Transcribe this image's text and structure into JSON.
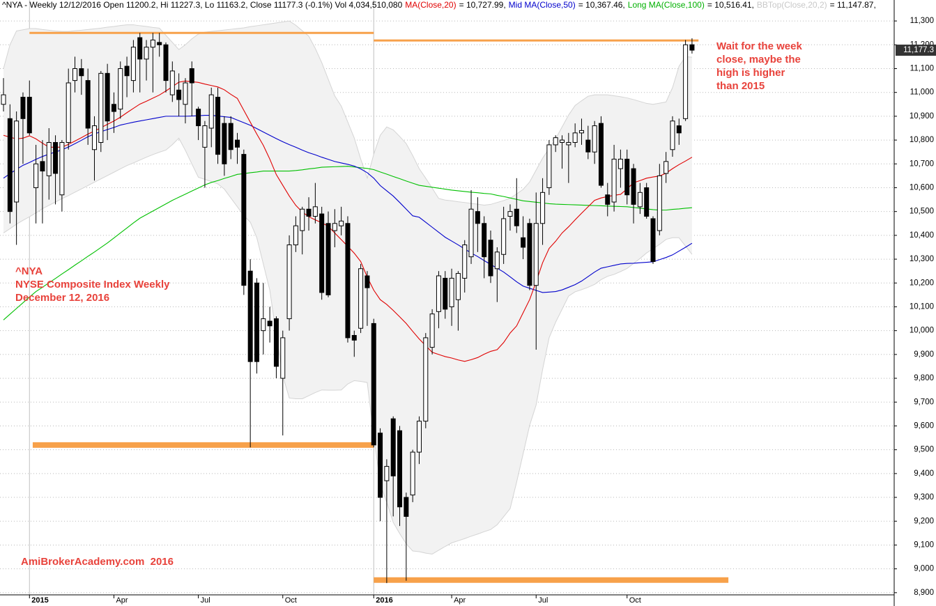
{
  "chart_data": {
    "type": "candlestick",
    "header": [
      {
        "text": "^NYA - Weekly 12/12/2016 Open 11200.2, Hi 11227.3, Lo 11163.2, Close 11177.3 (-0.1%) Vol 4,034,510,080",
        "color": "#000000"
      },
      {
        "text": "MA(Close,20)",
        "color": "#e00000"
      },
      {
        "text": "= 10,727.99,",
        "color": "#000000"
      },
      {
        "text": "Mid MA(Close,50)",
        "color": "#0000cc"
      },
      {
        "text": "= 10,367.46,",
        "color": "#000000"
      },
      {
        "text": "Long MA(Close,100)",
        "color": "#00b000"
      },
      {
        "text": "= 10,516.41,",
        "color": "#000000"
      },
      {
        "text": "BBTop(Close,20,2)",
        "color": "#c8c8c8"
      },
      {
        "text": "= 11,147.87,",
        "color": "#000000"
      }
    ],
    "annotations": [
      {
        "lines": [
          "Wait for the week",
          "close, maybe the",
          "high is higher",
          "than 2015"
        ],
        "color": "#e8423b"
      },
      {
        "lines": [
          "^NYA",
          "NYSE Composite Index Weekly",
          "December 12, 2016"
        ],
        "color": "#e8423b"
      },
      {
        "lines": [
          "AmiBrokerAcademy.com  2016"
        ],
        "color": "#e8423b"
      }
    ],
    "categories": [
      null,
      null,
      null,
      null,
      "2015",
      null,
      null,
      null,
      null,
      null,
      null,
      null,
      null,
      null,
      null,
      null,
      null,
      "Apr",
      null,
      null,
      null,
      null,
      null,
      null,
      null,
      null,
      null,
      null,
      null,
      null,
      "Jul",
      null,
      null,
      null,
      null,
      null,
      null,
      null,
      null,
      null,
      null,
      null,
      null,
      "Oct",
      null,
      null,
      null,
      null,
      null,
      null,
      null,
      null,
      null,
      null,
      null,
      null,
      null,
      "2016",
      null,
      null,
      null,
      null,
      null,
      null,
      null,
      null,
      null,
      null,
      null,
      "Apr",
      null,
      null,
      null,
      null,
      null,
      null,
      null,
      null,
      null,
      null,
      null,
      null,
      "Jul",
      null,
      null,
      null,
      null,
      null,
      null,
      null,
      null,
      null,
      null,
      null,
      null,
      null,
      "Oct",
      null,
      null,
      null,
      null,
      null,
      null,
      null,
      null,
      null,
      null
    ],
    "open": [
      10950,
      10890,
      10540,
      10980,
      10980,
      10600,
      10710,
      10650,
      10790,
      10570,
      10790,
      11050,
      11100,
      11050,
      10760,
      10790,
      11080,
      10950,
      10930,
      11110,
      11050,
      11230,
      11140,
      11190,
      11210,
      11200,
      10990,
      11010,
      10950,
      11100,
      10930,
      10770,
      10850,
      10980,
      10870,
      10870,
      10800,
      10740,
      10250,
      10200,
      10000,
      10040,
      10050,
      9800,
      10050,
      10360,
      10420,
      10510,
      10480,
      10490,
      10450,
      10420,
      10440,
      10450,
      9980,
      10010,
      10230,
      10030,
      9570,
      9370,
      9630,
      9580,
      9300,
      9310,
      9490,
      9620,
      9930,
      10080,
      10220,
      10100,
      10130,
      10220,
      10310,
      10500,
      10450,
      10380,
      10260,
      10320,
      10480,
      10510,
      10390,
      10450,
      10190,
      10450,
      10600,
      10780,
      10790,
      10780,
      10790,
      10830,
      10800,
      10750,
      10870,
      10570,
      10540,
      10680,
      10720,
      10680,
      10520,
      10600,
      10470,
      10420,
      10660,
      10760,
      10860,
      10890,
      11200.2
    ],
    "high": [
      11060,
      10950,
      10920,
      11000,
      11050,
      10780,
      10800,
      10850,
      10820,
      10800,
      11100,
      11150,
      11140,
      11100,
      10900,
      11090,
      11120,
      11000,
      11130,
      11150,
      11220,
      11250,
      11220,
      11250,
      11250,
      11210,
      11130,
      11080,
      11060,
      11130,
      10940,
      10880,
      11020,
      11020,
      10900,
      10900,
      10830,
      10760,
      10300,
      10220,
      10200,
      10100,
      10060,
      10000,
      10400,
      10480,
      10520,
      10560,
      10620,
      10520,
      10500,
      10510,
      10520,
      10480,
      10000,
      10280,
      10250,
      10050,
      9590,
      9460,
      9640,
      9600,
      9320,
      9500,
      9640,
      9990,
      10090,
      10250,
      10250,
      10260,
      10250,
      10380,
      10590,
      10560,
      10480,
      10420,
      10350,
      10520,
      10530,
      10640,
      10480,
      10470,
      10580,
      10640,
      10800,
      10820,
      10820,
      10830,
      10870,
      10890,
      10860,
      10880,
      10900,
      10620,
      10780,
      10760,
      10760,
      10700,
      10620,
      10620,
      10480,
      10700,
      10750,
      10900,
      10890,
      11220,
      11227.3
    ],
    "low": [
      10920,
      10450,
      10360,
      10700,
      10820,
      10450,
      10450,
      10550,
      10530,
      10500,
      10760,
      11000,
      10990,
      10780,
      10630,
      10750,
      10800,
      10830,
      10890,
      10980,
      11000,
      11000,
      11050,
      11000,
      11150,
      11000,
      10960,
      10900,
      10870,
      10900,
      10800,
      10600,
      10770,
      10700,
      10650,
      10720,
      10700,
      10150,
      9510,
      9820,
      9900,
      9950,
      9800,
      9560,
      10000,
      10330,
      10320,
      10420,
      10450,
      10130,
      10140,
      10350,
      10400,
      9950,
      9890,
      9990,
      10020,
      9510,
      9200,
      8940,
      9220,
      9180,
      8950,
      9280,
      9440,
      9590,
      9900,
      10010,
      10050,
      10020,
      10000,
      10160,
      10280,
      10330,
      10220,
      10200,
      10120,
      10280,
      10420,
      10410,
      10300,
      10170,
      9920,
      10360,
      10570,
      10750,
      10680,
      10620,
      10770,
      10780,
      10720,
      10700,
      10600,
      10480,
      10500,
      10600,
      10530,
      10450,
      10490,
      10470,
      10280,
      10400,
      10620,
      10730,
      10780,
      10880,
      11163.2
    ],
    "close": [
      10990,
      10500,
      10880,
      10890,
      10830,
      10700,
      10670,
      10790,
      10660,
      10790,
      11040,
      11100,
      11070,
      10850,
      10860,
      11080,
      10880,
      10920,
      11100,
      11070,
      11190,
      11140,
      11190,
      11220,
      11200,
      11050,
      11090,
      10970,
      11040,
      11040,
      10860,
      10860,
      10990,
      10740,
      10700,
      10760,
      10770,
      10190,
      9870,
      9870,
      10050,
      10020,
      9850,
      9970,
      10360,
      10440,
      10510,
      10480,
      10520,
      10160,
      10150,
      10450,
      10460,
      9970,
      9960,
      10260,
      10180,
      9520,
      9300,
      9430,
      9390,
      9260,
      9220,
      9490,
      9620,
      9970,
      10070,
      10230,
      10090,
      10220,
      10240,
      10360,
      10510,
      10450,
      10310,
      10230,
      10330,
      10470,
      10500,
      10440,
      10350,
      10190,
      10450,
      10580,
      10780,
      10810,
      10800,
      10790,
      10830,
      10840,
      10750,
      10860,
      10610,
      10530,
      10720,
      10720,
      10570,
      10530,
      10580,
      10480,
      10290,
      10650,
      10710,
      10880,
      10830,
      11200,
      11177.3
    ],
    "bands": {
      "color": "#f2f2f2",
      "edge": "#d4d4d4",
      "upper": [
        11100,
        11200,
        11258,
        11263,
        11268,
        11268,
        11264,
        11261,
        11258,
        11256,
        11256,
        11259,
        11261,
        11264,
        11267,
        11270,
        11274,
        11277,
        11281,
        11284,
        11284,
        11280,
        11277,
        11273,
        11270,
        11240,
        11210,
        11180,
        11200,
        11225,
        11245,
        11253,
        11256,
        11259,
        11262,
        11265,
        11268,
        11271,
        11276,
        11280,
        11284,
        11288,
        11292,
        11296,
        11300,
        11282,
        11259,
        11236,
        11185,
        11125,
        11055,
        10985,
        10943,
        10876,
        10809,
        10720,
        10640,
        10740,
        10820,
        10855,
        10843,
        10815,
        10785,
        10735,
        10680,
        10640,
        10598,
        10555,
        10548,
        10545,
        10541,
        10538,
        10534,
        10531,
        10527,
        10530,
        10538,
        10546,
        10556,
        10574,
        10593,
        10624,
        10674,
        10724,
        10765,
        10805,
        10855,
        10905,
        10945,
        10965,
        10984,
        10990,
        10990,
        10990,
        10986,
        10982,
        10977,
        10970,
        10962,
        10954,
        10950,
        10955,
        10960,
        11020,
        11110,
        11150,
        11148
      ],
      "lower": [
        10410,
        10428,
        10447,
        10463,
        10478,
        10494,
        10512,
        10526,
        10540,
        10554,
        10567,
        10581,
        10595,
        10609,
        10623,
        10637,
        10651,
        10665,
        10679,
        10693,
        10704,
        10716,
        10728,
        10739,
        10749,
        10758,
        10781,
        10808,
        10757,
        10700,
        10644,
        10635,
        10626,
        10616,
        10594,
        10557,
        10520,
        10483,
        10455,
        10390,
        10280,
        10170,
        9980,
        9810,
        9717,
        9714,
        9714,
        9727,
        9740,
        9751,
        9750,
        9750,
        9751,
        9776,
        9790,
        9787,
        9782,
        9560,
        9356,
        9280,
        9195,
        9148,
        9105,
        9075,
        9072,
        9066,
        9062,
        9078,
        9094,
        9109,
        9118,
        9127,
        9137,
        9146,
        9156,
        9165,
        9185,
        9219,
        9253,
        9364,
        9483,
        9602,
        9688,
        9837,
        9970,
        10035,
        10090,
        10145,
        10163,
        10172,
        10182,
        10194,
        10214,
        10228,
        10236,
        10248,
        10261,
        10282,
        10303,
        10326,
        10344,
        10362,
        10383,
        10390,
        10390,
        10355,
        10320
      ]
    },
    "series": [
      {
        "color": "#00c000",
        "values": [
          10045,
          10069,
          10093,
          10117,
          10141,
          10164,
          10182,
          10201,
          10219,
          10238,
          10256,
          10275,
          10293,
          10312,
          10330,
          10349,
          10368,
          10389,
          10410,
          10431,
          10452,
          10472,
          10487,
          10502,
          10517,
          10532,
          10547,
          10560,
          10573,
          10586,
          10599,
          10612,
          10622,
          10630,
          10639,
          10647,
          10656,
          10659,
          10663,
          10666,
          10670,
          10670,
          10670,
          10670,
          10670,
          10672,
          10675,
          10679,
          10682,
          10686,
          10687,
          10688,
          10689,
          10690,
          10687,
          10684,
          10681,
          10676,
          10666,
          10657,
          10647,
          10638,
          10628,
          10619,
          10610,
          10606,
          10602,
          10598,
          10594,
          10590,
          10587,
          10584,
          10581,
          10579,
          10576,
          10574,
          10568,
          10563,
          10557,
          10551,
          10545,
          10542,
          10539,
          10536,
          10533,
          10531,
          10530,
          10529,
          10528,
          10527,
          10526,
          10525,
          10524,
          10523,
          10522,
          10521,
          10520,
          10517,
          10514,
          10511,
          10508,
          10506,
          10506,
          10509,
          10511,
          10514,
          10516
        ]
      },
      {
        "color": "#0000cc",
        "values": [
          10640,
          10659,
          10677,
          10694,
          10706,
          10719,
          10731,
          10741,
          10750,
          10759,
          10771,
          10785,
          10799,
          10814,
          10826,
          10835,
          10844,
          10853,
          10863,
          10869,
          10875,
          10880,
          10885,
          10890,
          10895,
          10900,
          10900,
          10900,
          10900,
          10901,
          10902,
          10904,
          10904,
          10901,
          10898,
          10895,
          10884,
          10873,
          10862,
          10848,
          10834,
          10820,
          10806,
          10793,
          10781,
          10770,
          10758,
          10747,
          10738,
          10728,
          10719,
          10710,
          10704,
          10698,
          10691,
          10679,
          10663,
          10640,
          10609,
          10587,
          10565,
          10538,
          10510,
          10482,
          10476,
          10455,
          10434,
          10413,
          10392,
          10376,
          10360,
          10343,
          10326,
          10311,
          10294,
          10278,
          10262,
          10246,
          10226,
          10205,
          10187,
          10178,
          10169,
          10160,
          10162,
          10164,
          10171,
          10182,
          10193,
          10208,
          10227,
          10246,
          10262,
          10268,
          10274,
          10280,
          10282,
          10283,
          10285,
          10287,
          10289,
          10298,
          10307,
          10318,
          10334,
          10350,
          10367
        ]
      },
      {
        "color": "#e00000",
        "values": [
          10820,
          10812,
          10805,
          10808,
          10818,
          10805,
          10787,
          10770,
          10770,
          10770,
          10782,
          10796,
          10810,
          10825,
          10838,
          10852,
          10866,
          10880,
          10896,
          10915,
          10933,
          10951,
          10963,
          10976,
          10989,
          11006,
          11024,
          11043,
          11048,
          11045,
          11042,
          11035,
          11029,
          11023,
          11011,
          10992,
          10975,
          10925,
          10875,
          10825,
          10778,
          10720,
          10655,
          10610,
          10565,
          10526,
          10498,
          10478,
          10465,
          10453,
          10438,
          10410,
          10382,
          10354,
          10325,
          10290,
          10225,
          10170,
          10130,
          10110,
          10085,
          10058,
          10030,
          9997,
          9965,
          9937,
          9909,
          9900,
          9891,
          9885,
          9877,
          9871,
          9878,
          9887,
          9901,
          9913,
          9920,
          9950,
          9990,
          10020,
          10075,
          10130,
          10205,
          10285,
          10345,
          10375,
          10410,
          10436,
          10465,
          10493,
          10520,
          10547,
          10557,
          10563,
          10568,
          10572,
          10595,
          10621,
          10630,
          10640,
          10645,
          10649,
          10661,
          10680,
          10697,
          10712,
          10728
        ]
      }
    ],
    "levels": [
      {
        "value": 11250,
        "from": 4,
        "to": 57,
        "color": "#f7a14a"
      },
      {
        "value": 11218,
        "from": 57,
        "to": 107,
        "color": "#f7a14a"
      },
      {
        "value": 9520,
        "from": 4.5,
        "to": 57,
        "color": "#f7a14a"
      },
      {
        "value": 8953,
        "from": 57,
        "to": 111.6,
        "color": "#f7a14a"
      }
    ],
    "last_price": {
      "value": 11177.3,
      "label": "11,177.3"
    },
    "ylim": [
      8844,
      11388
    ],
    "yticks": [
      {
        "value": 8900,
        "label": "8,900"
      },
      {
        "value": 9000,
        "label": "9,000"
      },
      {
        "value": 9100,
        "label": "9,100"
      },
      {
        "value": 9200,
        "label": "9,200"
      },
      {
        "value": 9300,
        "label": "9,300"
      },
      {
        "value": 9400,
        "label": "9,400"
      },
      {
        "value": 9500,
        "label": "9,500"
      },
      {
        "value": 9600,
        "label": "9,600"
      },
      {
        "value": 9700,
        "label": "9,700"
      },
      {
        "value": 9800,
        "label": "9,800"
      },
      {
        "value": 9900,
        "label": "9,900"
      },
      {
        "value": 10000,
        "label": "10,000"
      },
      {
        "value": 10100,
        "label": "10,100"
      },
      {
        "value": 10200,
        "label": "10,200"
      },
      {
        "value": 10300,
        "label": "10,300"
      },
      {
        "value": 10400,
        "label": "10,400"
      },
      {
        "value": 10500,
        "label": "10,500"
      },
      {
        "value": 10600,
        "label": "10,600"
      },
      {
        "value": 10700,
        "label": "10,700"
      },
      {
        "value": 10800,
        "label": "10,800"
      },
      {
        "value": 10900,
        "label": "10,900"
      },
      {
        "value": 11000,
        "label": "11,000"
      },
      {
        "value": 11100,
        "label": "11,100"
      },
      {
        "value": 11200,
        "label": "11,200"
      },
      {
        "value": 11300,
        "label": "11,300"
      }
    ],
    "grid": true
  }
}
